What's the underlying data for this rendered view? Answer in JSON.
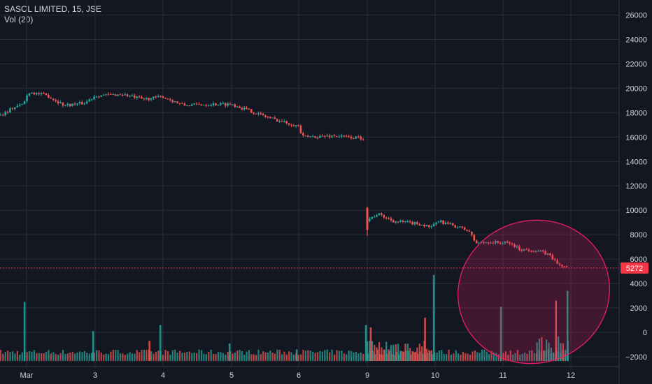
{
  "header": {
    "symbol_line": "SASOL LIMITED, 15, JSE",
    "indicator_line": "Vol (20)"
  },
  "colors": {
    "background": "#131722",
    "grid": "#2a2e39",
    "up": "#26a69a",
    "down": "#ef5350",
    "price_line": "#f23645",
    "highlight_ellipse": "#e91e63",
    "text": "#d1d4dc"
  },
  "chart_data": {
    "type": "candlestick",
    "title": "SASOL LIMITED, 15, JSE",
    "indicator": "Vol (20)",
    "y_axis": {
      "side": "right",
      "ticks": [
        26000,
        24000,
        22000,
        20000,
        18000,
        16000,
        14000,
        12000,
        10000,
        8000,
        6000,
        4000,
        2000,
        0,
        -2000
      ],
      "labels": [
        "26000",
        "24000",
        "22000",
        "20000",
        "18000",
        "16000",
        "14000",
        "12000",
        "10000",
        "8000",
        "6000",
        "4000",
        "2000",
        "0",
        "−2000"
      ],
      "range": [
        -2400,
        27000
      ]
    },
    "x_axis": {
      "tick_labels": [
        "Mar",
        "3",
        "4",
        "5",
        "6",
        "9",
        "10",
        "11",
        "12"
      ],
      "tick_positions": [
        0,
        1,
        2,
        3,
        4,
        5,
        6,
        7,
        8
      ]
    },
    "last_price": {
      "value": 5272,
      "label": "5272"
    },
    "price_path": [
      [
        -0.38,
        17800
      ],
      [
        -0.2,
        18400
      ],
      [
        -0.05,
        18700
      ],
      [
        0.03,
        19700
      ],
      [
        0.3,
        19400
      ],
      [
        0.55,
        18600
      ],
      [
        0.85,
        18800
      ],
      [
        1.0,
        19400
      ],
      [
        1.4,
        19500
      ],
      [
        1.7,
        19100
      ],
      [
        2.0,
        19300
      ],
      [
        2.3,
        18600
      ],
      [
        2.7,
        18700
      ],
      [
        3.0,
        18700
      ],
      [
        3.25,
        18200
      ],
      [
        3.55,
        17600
      ],
      [
        3.8,
        17200
      ],
      [
        4.0,
        16900
      ],
      [
        4.05,
        16000
      ],
      [
        4.5,
        16100
      ],
      [
        4.95,
        15900
      ]
    ],
    "price_path_2": [
      [
        5.0,
        9200
      ],
      [
        5.15,
        9700
      ],
      [
        5.4,
        9100
      ],
      [
        5.75,
        8900
      ],
      [
        5.95,
        8600
      ],
      [
        6.05,
        9100
      ],
      [
        6.3,
        8700
      ],
      [
        6.5,
        8300
      ],
      [
        6.6,
        7300
      ],
      [
        6.8,
        7400
      ],
      [
        7.1,
        7300
      ],
      [
        7.25,
        6800
      ],
      [
        7.5,
        6700
      ],
      [
        7.7,
        6300
      ],
      [
        7.8,
        5600
      ],
      [
        7.9,
        5400
      ],
      [
        7.97,
        5300
      ]
    ],
    "volume_spikes": [
      {
        "x": -0.03,
        "value": 2500,
        "dir": "up"
      },
      {
        "x": 0.97,
        "value": 100,
        "dir": "up"
      },
      {
        "x": 1.96,
        "value": 600,
        "dir": "up"
      },
      {
        "x": 1.8,
        "value": -700,
        "dir": "down"
      },
      {
        "x": 2.97,
        "value": -900,
        "dir": "up"
      },
      {
        "x": 3.97,
        "value": -1400,
        "dir": "up"
      },
      {
        "x": 4.98,
        "value": 600,
        "dir": "up"
      },
      {
        "x": 5.05,
        "value": 400,
        "dir": "down"
      },
      {
        "x": 5.85,
        "value": 1200,
        "dir": "down"
      },
      {
        "x": 5.98,
        "value": 4700,
        "dir": "up"
      },
      {
        "x": 6.97,
        "value": 2100,
        "dir": "up"
      },
      {
        "x": 7.78,
        "value": 2600,
        "dir": "down"
      },
      {
        "x": 7.95,
        "value": 3400,
        "dir": "up"
      }
    ],
    "highlight": {
      "shape": "ellipse",
      "color": "#e91e63",
      "region": "days 11–12"
    },
    "grid": true,
    "legend": "top-left"
  }
}
